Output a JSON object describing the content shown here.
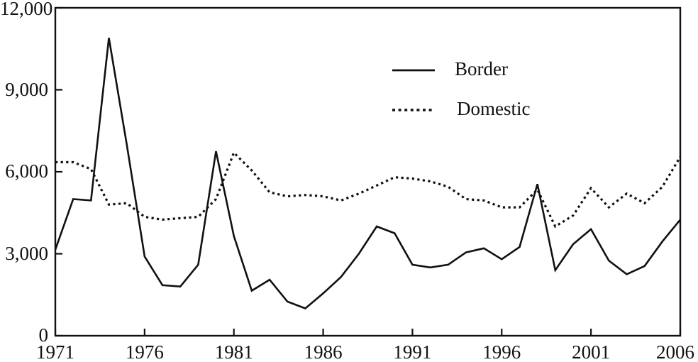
{
  "accent_color": "#111111",
  "background_color": "#ffffff",
  "legend": {
    "border_label": "Border",
    "domestic_label": "Domestic"
  },
  "chart_data": {
    "type": "line",
    "title": "",
    "xlabel": "",
    "ylabel": "",
    "grid": false,
    "legend_position": "upper-middle-right",
    "line_color": "#111111",
    "xlim": [
      1971,
      2006
    ],
    "ylim": [
      0,
      12000
    ],
    "x": [
      1971,
      1972,
      1973,
      1974,
      1975,
      1976,
      1977,
      1978,
      1979,
      1980,
      1981,
      1982,
      1983,
      1984,
      1985,
      1986,
      1987,
      1988,
      1989,
      1990,
      1991,
      1992,
      1993,
      1994,
      1995,
      1996,
      1997,
      1998,
      1999,
      2000,
      2001,
      2002,
      2003,
      2004,
      2005,
      2006
    ],
    "series": [
      {
        "name": "Border",
        "style": "solid",
        "values": [
          3150,
          5000,
          4950,
          10900,
          7000,
          2900,
          1850,
          1800,
          2600,
          6750,
          3650,
          1650,
          2050,
          1250,
          1000,
          1550,
          2150,
          3000,
          4000,
          3750,
          2600,
          2500,
          2600,
          3050,
          3200,
          2800,
          3250,
          5550,
          2400,
          3350,
          3900,
          2750,
          2250,
          2550,
          3450,
          4250
        ]
      },
      {
        "name": "Domestic",
        "style": "dotted",
        "values": [
          6350,
          6350,
          6100,
          4800,
          4850,
          4350,
          4250,
          4300,
          4350,
          5000,
          6700,
          6050,
          5250,
          5100,
          5150,
          5100,
          4950,
          5200,
          5500,
          5800,
          5750,
          5650,
          5450,
          5000,
          4950,
          4700,
          4700,
          5350,
          4000,
          4400,
          5400,
          4700,
          5200,
          4850,
          5450,
          6550
        ]
      }
    ],
    "x_ticks": [
      {
        "v": 1971,
        "label": "1971"
      },
      {
        "v": 1976,
        "label": "1976"
      },
      {
        "v": 1981,
        "label": "1981"
      },
      {
        "v": 1986,
        "label": "1986"
      },
      {
        "v": 1991,
        "label": "1991"
      },
      {
        "v": 1996,
        "label": "1996"
      },
      {
        "v": 2001,
        "label": "2001"
      },
      {
        "v": 2006,
        "label": "2006"
      }
    ],
    "y_ticks": [
      {
        "v": 0,
        "label": "0"
      },
      {
        "v": 3000,
        "label": "3,000"
      },
      {
        "v": 6000,
        "label": "6,000"
      },
      {
        "v": 9000,
        "label": "9,000"
      },
      {
        "v": 12000,
        "label": "12,000"
      }
    ]
  }
}
